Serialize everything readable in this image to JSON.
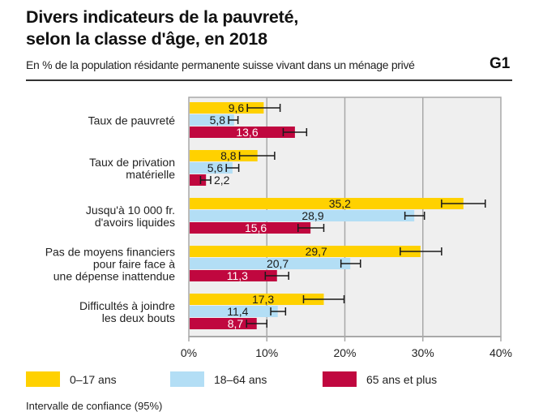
{
  "header": {
    "title_line1": "Divers indicateurs de la pauvreté,",
    "title_line2": "selon la classe d'âge, en 2018",
    "subtitle": "En % de la population résidante permanente suisse vivant dans un ménage privé",
    "graph_number": "G1"
  },
  "colors": {
    "age_0_17": "#FFD100",
    "age_18_64": "#B3DEF5",
    "age_65_plus": "#C0073F",
    "plot_background": "#EFEFEF",
    "gridline": "#A8A8A8",
    "error_bar": "#1a1a1a"
  },
  "chart_data": {
    "type": "bar",
    "orientation": "horizontal",
    "title": "Divers indicateurs de la pauvreté, selon la classe d'âge, en 2018",
    "subtitle": "En % de la population résidante permanente suisse vivant dans un ménage privé",
    "xlabel": "",
    "ylabel": "",
    "xlim": [
      0,
      40
    ],
    "xticks": [
      0,
      10,
      20,
      30,
      40
    ],
    "xtick_labels": [
      "0%",
      "10%",
      "20%",
      "30%",
      "40%"
    ],
    "grid": true,
    "legend_position": "bottom",
    "categories": [
      [
        "Taux de pauvreté"
      ],
      [
        "Taux de privation",
        "matérielle"
      ],
      [
        "Jusqu'à 10 000 fr.",
        "d'avoirs liquides"
      ],
      [
        "Pas de moyens financiers",
        "pour faire face à",
        "une dépense inattendue"
      ],
      [
        "Difficultés à joindre",
        "les deux bouts"
      ]
    ],
    "series": [
      {
        "name": "0–17 ans",
        "values": [
          9.6,
          8.8,
          35.2,
          29.7,
          17.3
        ],
        "labels": [
          "9,6",
          "8,8",
          "35,2",
          "29,7",
          "17,3"
        ],
        "ci_low": [
          7.5,
          6.5,
          32.4,
          27.1,
          14.7
        ],
        "ci_high": [
          11.7,
          11.0,
          38.0,
          32.4,
          19.9
        ]
      },
      {
        "name": "18–64 ans",
        "values": [
          5.8,
          5.6,
          28.9,
          20.7,
          11.4
        ],
        "labels": [
          "5,8",
          "5,6",
          "28,9",
          "20,7",
          "11,4"
        ],
        "ci_low": [
          5.1,
          4.8,
          27.7,
          19.5,
          10.5
        ],
        "ci_high": [
          6.3,
          6.4,
          30.2,
          22.0,
          12.4
        ]
      },
      {
        "name": "65 ans et plus",
        "values": [
          13.6,
          2.2,
          15.6,
          11.3,
          8.7
        ],
        "labels": [
          "13,6",
          "2,2",
          "15,6",
          "11,3",
          "8,7"
        ],
        "ci_low": [
          12.1,
          1.5,
          14.0,
          9.8,
          7.4
        ],
        "ci_high": [
          15.1,
          2.8,
          17.3,
          12.8,
          10.0
        ]
      }
    ],
    "ci_note": "Intervalle de confiance (95%)"
  },
  "legend": {
    "items": [
      {
        "label": "0–17 ans"
      },
      {
        "label": "18–64 ans"
      },
      {
        "label": "65 ans et plus"
      }
    ]
  }
}
